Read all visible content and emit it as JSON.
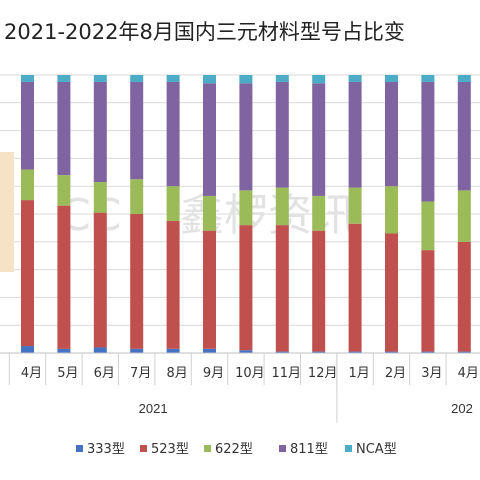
{
  "chart_data": {
    "type": "bar",
    "stacked": "percent",
    "title": "2021-2022年8月国内三元材料型号占比变",
    "categories": [
      "4月",
      "5月",
      "6月",
      "7月",
      "8月",
      "9月",
      "10月",
      "11月",
      "12月",
      "1月",
      "2月",
      "3月",
      "4月"
    ],
    "years": [
      {
        "label": "2021",
        "span": 9
      },
      {
        "label": "202",
        "span": 4
      }
    ],
    "series": [
      {
        "name": "333型",
        "color": "#4472c4",
        "values": [
          2.5,
          1.5,
          2.0,
          1.5,
          1.5,
          1.5,
          1.0,
          0.5,
          0.5,
          0.5,
          0.5,
          0.5,
          0.5
        ]
      },
      {
        "name": "523型",
        "color": "#c0504d",
        "values": [
          52.5,
          51.5,
          48.5,
          48.5,
          46.0,
          42.5,
          45.0,
          45.5,
          43.5,
          46.0,
          42.5,
          36.5,
          39.5
        ]
      },
      {
        "name": "622型",
        "color": "#9bbb59",
        "values": [
          11.0,
          11.0,
          11.0,
          12.5,
          12.5,
          12.5,
          12.5,
          13.5,
          12.5,
          13.0,
          17.0,
          17.5,
          18.5
        ]
      },
      {
        "name": "811型",
        "color": "#8064a2",
        "values": [
          31.5,
          33.5,
          36.0,
          35.0,
          37.5,
          40.5,
          38.5,
          38.0,
          40.5,
          38.0,
          37.5,
          43.0,
          39.0
        ]
      },
      {
        "name": "NCA型",
        "color": "#4bacc6",
        "values": [
          2.5,
          2.5,
          2.5,
          2.5,
          2.5,
          3.0,
          3.0,
          2.5,
          3.0,
          2.5,
          2.5,
          2.5,
          2.5
        ]
      }
    ],
    "ylim": [
      0,
      100
    ],
    "grid": true,
    "legend": "bottom"
  },
  "watermark": {
    "latin": "CC",
    "chinese": "鑫椤资讯"
  }
}
